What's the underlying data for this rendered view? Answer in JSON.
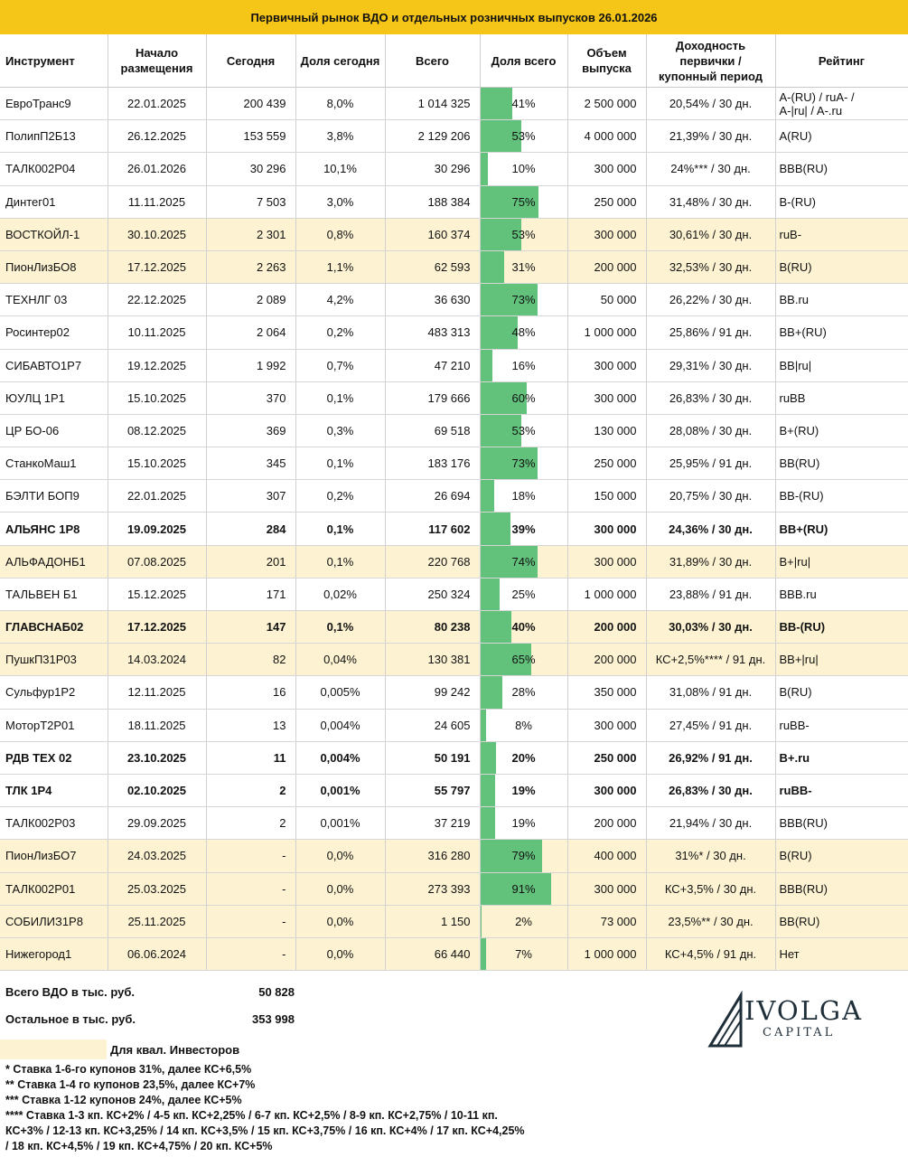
{
  "title": "Первичный рынок ВДО и отдельных розничных выпусков 26.01.2026",
  "headers": {
    "instrument": "Инструмент",
    "start_l1": "Начало",
    "start_l2": "размещения",
    "today": "Сегодня",
    "share_today": "Доля сегодня",
    "total": "Всего",
    "share_total": "Доля всего",
    "volume_l1": "Объем",
    "volume_l2": "выпуска",
    "yield_l1": "Доходность",
    "yield_l2": "первички /",
    "yield_l3": "купонный период",
    "rating": "Рейтинг"
  },
  "colors": {
    "header_band": "#f5c518",
    "highlight_row": "#fdf3d2",
    "bar": "#62c27b"
  },
  "rows": [
    {
      "name": "ЕвроТранс9",
      "start": "22.01.2025",
      "today": "200 439",
      "share_today": "8,0%",
      "total": "1 014 325",
      "share_total": "41%",
      "share_value": 0.41,
      "volume": "2 500 000",
      "yield": "20,54% / 30 дн.",
      "rating_l1": "A-(RU) / ruA- /",
      "rating_l2": "A-|ru| / A-.ru",
      "hl": false,
      "bold": false
    },
    {
      "name": "ПолипП2Б13",
      "start": "26.12.2025",
      "today": "153 559",
      "share_today": "3,8%",
      "total": "2 129 206",
      "share_total": "53%",
      "share_value": 0.53,
      "volume": "4 000 000",
      "yield": "21,39% / 30 дн.",
      "rating_l1": "A(RU)",
      "rating_l2": "",
      "hl": false,
      "bold": false
    },
    {
      "name": "ТАЛК002Р04",
      "start": "26.01.2026",
      "today": "30 296",
      "share_today": "10,1%",
      "total": "30 296",
      "share_total": "10%",
      "share_value": 0.1,
      "volume": "300 000",
      "yield": "24%*** / 30 дн.",
      "rating_l1": "BBB(RU)",
      "rating_l2": "",
      "hl": false,
      "bold": false
    },
    {
      "name": "Динтег01",
      "start": "11.11.2025",
      "today": "7 503",
      "share_today": "3,0%",
      "total": "188 384",
      "share_total": "75%",
      "share_value": 0.75,
      "volume": "250 000",
      "yield": "31,48% / 30 дн.",
      "rating_l1": "B-(RU)",
      "rating_l2": "",
      "hl": false,
      "bold": false
    },
    {
      "name": "ВОСТКОЙЛ-1",
      "start": "30.10.2025",
      "today": "2 301",
      "share_today": "0,8%",
      "total": "160 374",
      "share_total": "53%",
      "share_value": 0.53,
      "volume": "300 000",
      "yield": "30,61% / 30 дн.",
      "rating_l1": "ruB-",
      "rating_l2": "",
      "hl": true,
      "bold": false
    },
    {
      "name": "ПионЛизБО8",
      "start": "17.12.2025",
      "today": "2 263",
      "share_today": "1,1%",
      "total": "62 593",
      "share_total": "31%",
      "share_value": 0.31,
      "volume": "200 000",
      "yield": "32,53% / 30 дн.",
      "rating_l1": "B(RU)",
      "rating_l2": "",
      "hl": true,
      "bold": false
    },
    {
      "name": "ТЕХНЛГ 03",
      "start": "22.12.2025",
      "today": "2 089",
      "share_today": "4,2%",
      "total": "36 630",
      "share_total": "73%",
      "share_value": 0.73,
      "volume": "50 000",
      "yield": "26,22% / 30 дн.",
      "rating_l1": "BB.ru",
      "rating_l2": "",
      "hl": false,
      "bold": false
    },
    {
      "name": "Росинтер02",
      "start": "10.11.2025",
      "today": "2 064",
      "share_today": "0,2%",
      "total": "483 313",
      "share_total": "48%",
      "share_value": 0.48,
      "volume": "1 000 000",
      "yield": "25,86% / 91 дн.",
      "rating_l1": "BB+(RU)",
      "rating_l2": "",
      "hl": false,
      "bold": false
    },
    {
      "name": "СИБАВТО1Р7",
      "start": "19.12.2025",
      "today": "1 992",
      "share_today": "0,7%",
      "total": "47 210",
      "share_total": "16%",
      "share_value": 0.16,
      "volume": "300 000",
      "yield": "29,31% / 30 дн.",
      "rating_l1": "BB|ru|",
      "rating_l2": "",
      "hl": false,
      "bold": false
    },
    {
      "name": "ЮУЛЦ 1Р1",
      "start": "15.10.2025",
      "today": "370",
      "share_today": "0,1%",
      "total": "179 666",
      "share_total": "60%",
      "share_value": 0.6,
      "volume": "300 000",
      "yield": "26,83% / 30 дн.",
      "rating_l1": "ruBB",
      "rating_l2": "",
      "hl": false,
      "bold": false
    },
    {
      "name": "ЦР БО-06",
      "start": "08.12.2025",
      "today": "369",
      "share_today": "0,3%",
      "total": "69 518",
      "share_total": "53%",
      "share_value": 0.53,
      "volume": "130 000",
      "yield": "28,08% / 30 дн.",
      "rating_l1": "B+(RU)",
      "rating_l2": "",
      "hl": false,
      "bold": false
    },
    {
      "name": "СтанкоМаш1",
      "start": "15.10.2025",
      "today": "345",
      "share_today": "0,1%",
      "total": "183 176",
      "share_total": "73%",
      "share_value": 0.73,
      "volume": "250 000",
      "yield": "25,95% / 91 дн.",
      "rating_l1": "BB(RU)",
      "rating_l2": "",
      "hl": false,
      "bold": false
    },
    {
      "name": "БЭЛТИ БОП9",
      "start": "22.01.2025",
      "today": "307",
      "share_today": "0,2%",
      "total": "26 694",
      "share_total": "18%",
      "share_value": 0.18,
      "volume": "150 000",
      "yield": "20,75% / 30 дн.",
      "rating_l1": " BB-(RU)",
      "rating_l2": "",
      "hl": false,
      "bold": false
    },
    {
      "name": "АЛЬЯНС 1Р8",
      "start": "19.09.2025",
      "today": "284",
      "share_today": "0,1%",
      "total": "117 602",
      "share_total": "39%",
      "share_value": 0.39,
      "volume": "300 000",
      "yield": "24,36% / 30 дн.",
      "rating_l1": "BB+(RU)",
      "rating_l2": "",
      "hl": false,
      "bold": true
    },
    {
      "name": "АЛЬФАДОНБ1",
      "start": "07.08.2025",
      "today": "201",
      "share_today": "0,1%",
      "total": "220 768",
      "share_total": "74%",
      "share_value": 0.74,
      "volume": "300 000",
      "yield": "31,89% / 30 дн.",
      "rating_l1": "B+|ru|",
      "rating_l2": "",
      "hl": true,
      "bold": false
    },
    {
      "name": "ТАЛЬВЕН Б1",
      "start": "15.12.2025",
      "today": "171",
      "share_today": "0,02%",
      "total": "250 324",
      "share_total": "25%",
      "share_value": 0.25,
      "volume": "1 000 000",
      "yield": "23,88% / 91 дн.",
      "rating_l1": "BBB.ru",
      "rating_l2": "",
      "hl": false,
      "bold": false
    },
    {
      "name": "ГЛАВСНАБ02",
      "start": "17.12.2025",
      "today": "147",
      "share_today": "0,1%",
      "total": "80 238",
      "share_total": "40%",
      "share_value": 0.4,
      "volume": "200 000",
      "yield": "30,03% / 30 дн.",
      "rating_l1": "BB-(RU)",
      "rating_l2": "",
      "hl": true,
      "bold": true
    },
    {
      "name": "ПушкП31Р03",
      "start": "14.03.2024",
      "today": "82",
      "share_today": "0,04%",
      "total": "130 381",
      "share_total": "65%",
      "share_value": 0.65,
      "volume": "200 000",
      "yield": "КС+2,5%**** / 91 дн.",
      "rating_l1": "BB+|ru|",
      "rating_l2": "",
      "hl": true,
      "bold": false
    },
    {
      "name": "Сульфур1Р2",
      "start": "12.11.2025",
      "today": "16",
      "share_today": "0,005%",
      "total": "99 242",
      "share_total": "28%",
      "share_value": 0.28,
      "volume": "350 000",
      "yield": "31,08% / 91 дн.",
      "rating_l1": "B(RU)",
      "rating_l2": "",
      "hl": false,
      "bold": false
    },
    {
      "name": "МоторТ2Р01",
      "start": "18.11.2025",
      "today": "13",
      "share_today": "0,004%",
      "total": "24 605",
      "share_total": "8%",
      "share_value": 0.08,
      "volume": "300 000",
      "yield": "27,45% / 91 дн.",
      "rating_l1": "ruBB-",
      "rating_l2": "",
      "hl": false,
      "bold": false
    },
    {
      "name": "РДВ ТЕХ 02",
      "start": "23.10.2025",
      "today": "11",
      "share_today": "0,004%",
      "total": "50 191",
      "share_total": "20%",
      "share_value": 0.2,
      "volume": "250 000",
      "yield": "26,92% / 91 дн.",
      "rating_l1": "B+.ru",
      "rating_l2": "",
      "hl": false,
      "bold": true
    },
    {
      "name": "ТЛК 1Р4",
      "start": "02.10.2025",
      "today": "2",
      "share_today": "0,001%",
      "total": "55 797",
      "share_total": "19%",
      "share_value": 0.19,
      "volume": "300 000",
      "yield": "26,83% / 30 дн.",
      "rating_l1": "ruBB-",
      "rating_l2": "",
      "hl": false,
      "bold": true
    },
    {
      "name": "ТАЛК002Р03",
      "start": "29.09.2025",
      "today": "2",
      "share_today": "0,001%",
      "total": "37 219",
      "share_total": "19%",
      "share_value": 0.19,
      "volume": "200 000",
      "yield": "21,94% / 30 дн.",
      "rating_l1": "BBB(RU)",
      "rating_l2": "",
      "hl": false,
      "bold": false
    },
    {
      "name": "ПионЛизБО7",
      "start": "24.03.2025",
      "today": "-",
      "share_today": "0,0%",
      "total": "316 280",
      "share_total": "79%",
      "share_value": 0.79,
      "volume": "400 000",
      "yield": "31%* / 30 дн.",
      "rating_l1": "B(RU)",
      "rating_l2": "",
      "hl": true,
      "bold": false
    },
    {
      "name": "ТАЛК002Р01",
      "start": "25.03.2025",
      "today": "-",
      "share_today": "0,0%",
      "total": "273 393",
      "share_total": "91%",
      "share_value": 0.91,
      "volume": "300 000",
      "yield": "КС+3,5% / 30 дн.",
      "rating_l1": "BBB(RU)",
      "rating_l2": "",
      "hl": true,
      "bold": false
    },
    {
      "name": "СОБИЛИЗ1Р8",
      "start": "25.11.2025",
      "today": "-",
      "share_today": "0,0%",
      "total": "1 150",
      "share_total": "2%",
      "share_value": 0.02,
      "volume": "73 000",
      "yield": "23,5%** / 30 дн.",
      "rating_l1": "BB(RU)",
      "rating_l2": "",
      "hl": true,
      "bold": false
    },
    {
      "name": "Нижегород1",
      "start": "06.06.2024",
      "today": "-",
      "share_today": "0,0%",
      "total": "66 440",
      "share_total": "7%",
      "share_value": 0.07,
      "volume": "1 000 000",
      "yield": "КС+4,5% / 91 дн.",
      "rating_l1": "Нет",
      "rating_l2": "",
      "hl": true,
      "bold": false
    }
  ],
  "totals": {
    "vdo_label": "Всего ВДО в тыс. руб.",
    "vdo_value": "50 828",
    "other_label": "Остальное в тыс. руб.",
    "other_value": "353 998"
  },
  "legend": {
    "qual_label": "Для квал. Инвесторов"
  },
  "notes": [
    "* Ставка 1-6-го купонов 31%, далее КС+6,5%",
    "** Ставка 1-4 го купонов 23,5%, далее КС+7%",
    "*** Ставка 1-12 купонов 24%, далее КС+5%",
    "**** Ставка 1-3 кп. КС+2% / 4-5 кп. КС+2,25% / 6-7 кп. КС+2,5% / 8-9 кп. КС+2,75% / 10-11 кп.",
    "КС+3% / 12-13 кп. КС+3,25% / 14 кп. КС+3,5% / 15 кп. КС+3,75% / 16 кп. КС+4% / 17 кп. КС+4,25%",
    "/ 18 кп. КС+4,5% / 19 кп. КС+4,75% / 20 кп. КС+5%"
  ],
  "logo": {
    "name": "IVOLGA",
    "sub": "CAPITAL",
    "icon": "ivolga-logo-icon"
  }
}
